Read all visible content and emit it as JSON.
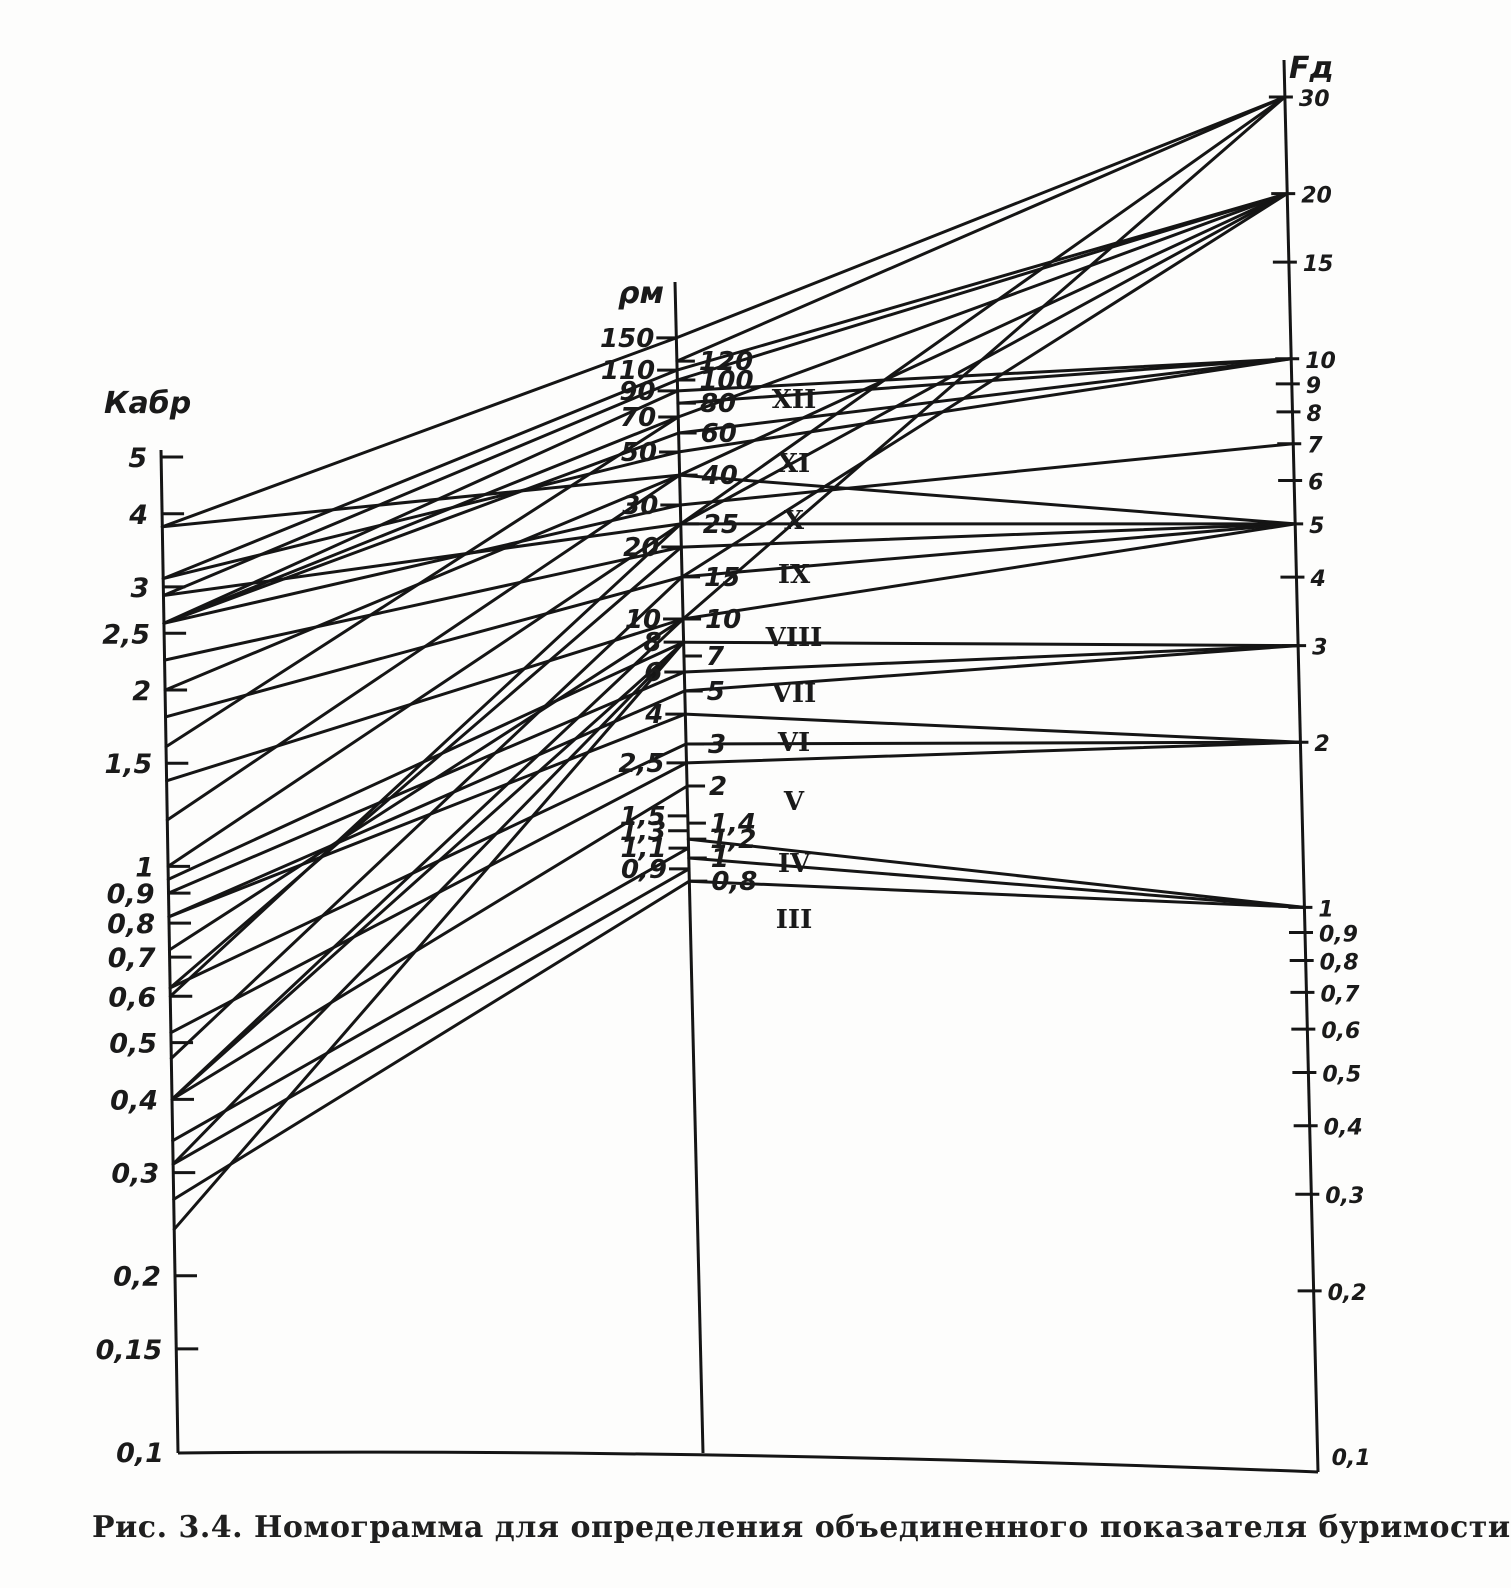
{
  "caption": "Рис. 3.4. Номограмма для определения объединенного показателя буримости",
  "chart_data": {
    "type": "nomogram",
    "axes": {
      "left": {
        "title": "Кабр",
        "scale": "log",
        "range": [
          0.1,
          5
        ],
        "ticks": [
          {
            "v": 5,
            "label": "5"
          },
          {
            "v": 4,
            "label": "4"
          },
          {
            "v": 3,
            "label": "3"
          },
          {
            "v": 2.5,
            "label": "2,5"
          },
          {
            "v": 2,
            "label": "2"
          },
          {
            "v": 1.5,
            "label": "1,5"
          },
          {
            "v": 1,
            "label": "1"
          },
          {
            "v": 0.9,
            "label": "0,9"
          },
          {
            "v": 0.8,
            "label": "0,8"
          },
          {
            "v": 0.7,
            "label": "0,7"
          },
          {
            "v": 0.6,
            "label": "0,6"
          },
          {
            "v": 0.5,
            "label": "0,5"
          },
          {
            "v": 0.4,
            "label": "0,4"
          },
          {
            "v": 0.3,
            "label": "0,3"
          },
          {
            "v": 0.2,
            "label": "0,2"
          },
          {
            "v": 0.15,
            "label": "0,15"
          },
          {
            "v": 0.1,
            "label": "0,1"
          }
        ]
      },
      "middle": {
        "title": "ρм",
        "scale": "log",
        "left_ticks": [
          {
            "v": 150,
            "label": "150"
          },
          {
            "v": 110,
            "label": "110"
          },
          {
            "v": 90,
            "label": "90"
          },
          {
            "v": 70,
            "label": "70"
          },
          {
            "v": 50,
            "label": "50"
          },
          {
            "v": 30,
            "label": "30"
          },
          {
            "v": 20,
            "label": "20"
          },
          {
            "v": 10,
            "label": "10"
          },
          {
            "v": 8,
            "label": "8"
          },
          {
            "v": 6,
            "label": "6"
          },
          {
            "v": 4,
            "label": "4"
          },
          {
            "v": 2.5,
            "label": "2,5"
          },
          {
            "v": 1.5,
            "label": "1,5"
          },
          {
            "v": 1.3,
            "label": "1,3"
          },
          {
            "v": 1.1,
            "label": "1,1"
          },
          {
            "v": 0.9,
            "label": "0,9"
          }
        ],
        "right_ticks": [
          {
            "v": 120,
            "label": "120"
          },
          {
            "v": 100,
            "label": "100"
          },
          {
            "v": 80,
            "label": "80"
          },
          {
            "v": 60,
            "label": "60"
          },
          {
            "v": 40,
            "label": "40"
          },
          {
            "v": 25,
            "label": "25"
          },
          {
            "v": 15,
            "label": "15"
          },
          {
            "v": 10,
            "label": "10"
          },
          {
            "v": 7,
            "label": "7"
          },
          {
            "v": 5,
            "label": "5"
          },
          {
            "v": 3,
            "label": "3"
          },
          {
            "v": 2,
            "label": "2"
          },
          {
            "v": 1.4,
            "label": "1,4"
          },
          {
            "v": 1.2,
            "label": "1,2"
          },
          {
            "v": 1,
            "label": "1"
          },
          {
            "v": 0.8,
            "label": "0,8"
          }
        ]
      },
      "right": {
        "title": "Fд",
        "scale": "log",
        "range": [
          0.1,
          30
        ],
        "ticks": [
          {
            "v": 30,
            "label": "30"
          },
          {
            "v": 20,
            "label": "20"
          },
          {
            "v": 15,
            "label": "15"
          },
          {
            "v": 10,
            "label": "10"
          },
          {
            "v": 9,
            "label": "9"
          },
          {
            "v": 8,
            "label": "8"
          },
          {
            "v": 7,
            "label": "7"
          },
          {
            "v": 6,
            "label": "6"
          },
          {
            "v": 5,
            "label": "5"
          },
          {
            "v": 4,
            "label": "4"
          },
          {
            "v": 3,
            "label": "3"
          },
          {
            "v": 2,
            "label": "2"
          },
          {
            "v": 1,
            "label": "1"
          },
          {
            "v": 0.9,
            "label": "0,9"
          },
          {
            "v": 0.8,
            "label": "0,8"
          },
          {
            "v": 0.7,
            "label": "0,7"
          },
          {
            "v": 0.6,
            "label": "0,6"
          },
          {
            "v": 0.5,
            "label": "0,5"
          },
          {
            "v": 0.4,
            "label": "0,4"
          },
          {
            "v": 0.3,
            "label": "0,3"
          },
          {
            "v": 0.2,
            "label": "0,2"
          },
          {
            "v": 0.1,
            "label": "0,1"
          }
        ]
      }
    },
    "categories": [
      {
        "label": "XII",
        "rho": 100,
        "F": 20
      },
      {
        "label": "XI",
        "rho": 60,
        "F": 10
      },
      {
        "label": "X",
        "rho": 40,
        "F": 5
      },
      {
        "label": "IX",
        "rho": 25,
        "F": 5
      },
      {
        "label": "VIII",
        "rho": 15,
        "F": 30
      },
      {
        "label": "VII",
        "rho": 10,
        "F": 7
      },
      {
        "label": "VI",
        "rho": 7,
        "F": 3
      },
      {
        "label": "V",
        "rho": 5,
        "F": 3
      },
      {
        "label": "IV",
        "rho": 3,
        "F": 2
      },
      {
        "label": "III",
        "rho": 2,
        "F": 2
      }
    ],
    "lines": [
      {
        "axis": "R",
        "from": 30,
        "to": 150
      },
      {
        "axis": "R",
        "from": 30,
        "to": 120
      },
      {
        "axis": "R",
        "from": 30,
        "to": 25
      },
      {
        "axis": "R",
        "from": 30,
        "to": 10
      },
      {
        "axis": "R",
        "from": 20,
        "to": 110
      },
      {
        "axis": "R",
        "from": 20,
        "to": 100
      },
      {
        "axis": "R",
        "from": 20,
        "to": 70
      },
      {
        "axis": "R",
        "from": 20,
        "to": 40
      },
      {
        "axis": "R",
        "from": 20,
        "to": 25
      },
      {
        "axis": "R",
        "from": 20,
        "to": 15
      },
      {
        "axis": "R",
        "from": 10,
        "to": 90
      },
      {
        "axis": "R",
        "from": 10,
        "to": 80
      },
      {
        "axis": "R",
        "from": 10,
        "to": 60
      },
      {
        "axis": "R",
        "from": 10,
        "to": 50
      },
      {
        "axis": "R",
        "from": 7,
        "to": 30
      },
      {
        "axis": "R",
        "from": 5,
        "to": 40
      },
      {
        "axis": "R",
        "from": 5,
        "to": 25
      },
      {
        "axis": "R",
        "from": 5,
        "to": 20
      },
      {
        "axis": "R",
        "from": 5,
        "to": 15
      },
      {
        "axis": "R",
        "from": 5,
        "to": 10
      },
      {
        "axis": "R",
        "from": 3,
        "to": 8
      },
      {
        "axis": "R",
        "from": 3,
        "to": 6
      },
      {
        "axis": "R",
        "from": 3,
        "to": 5
      },
      {
        "axis": "R",
        "from": 2,
        "to": 4
      },
      {
        "axis": "R",
        "from": 2,
        "to": 3
      },
      {
        "axis": "R",
        "from": 2,
        "to": 2.5
      },
      {
        "axis": "R",
        "from": 1,
        "to": 1.2
      },
      {
        "axis": "R",
        "from": 1,
        "to": 1
      },
      {
        "axis": "R",
        "from": 1,
        "to": 0.8
      },
      {
        "axis": "K",
        "from": 3.8,
        "to": 150
      },
      {
        "axis": "K",
        "from": 3.8,
        "to": 40
      },
      {
        "axis": "K",
        "from": 3.1,
        "to": 110
      },
      {
        "axis": "K",
        "from": 3.1,
        "to": 50
      },
      {
        "axis": "K",
        "from": 2.9,
        "to": 100
      },
      {
        "axis": "K",
        "from": 2.9,
        "to": 25
      },
      {
        "axis": "K",
        "from": 2.6,
        "to": 90
      },
      {
        "axis": "K",
        "from": 2.6,
        "to": 70
      },
      {
        "axis": "K",
        "from": 2.6,
        "to": 30
      },
      {
        "axis": "K",
        "from": 2.6,
        "to": 60
      },
      {
        "axis": "K",
        "from": 2.25,
        "to": 20
      },
      {
        "axis": "K",
        "from": 2,
        "to": 40
      },
      {
        "axis": "K",
        "from": 1.8,
        "to": 15
      },
      {
        "axis": "K",
        "from": 1.6,
        "to": 70
      },
      {
        "axis": "K",
        "from": 1.4,
        "to": 10
      },
      {
        "axis": "K",
        "from": 1.2,
        "to": 40
      },
      {
        "axis": "K",
        "from": 1,
        "to": 25
      },
      {
        "axis": "K",
        "from": 0.95,
        "to": 8
      },
      {
        "axis": "K",
        "from": 0.9,
        "to": 6
      },
      {
        "axis": "K",
        "from": 0.82,
        "to": 5
      },
      {
        "axis": "K",
        "from": 0.82,
        "to": 4
      },
      {
        "axis": "K",
        "from": 0.72,
        "to": 10
      },
      {
        "axis": "K",
        "from": 0.62,
        "to": 20
      },
      {
        "axis": "K",
        "from": 0.62,
        "to": 3
      },
      {
        "axis": "K",
        "from": 0.6,
        "to": 25
      },
      {
        "axis": "K",
        "from": 0.52,
        "to": 2.5
      },
      {
        "axis": "K",
        "from": 0.47,
        "to": 15
      },
      {
        "axis": "K",
        "from": 0.4,
        "to": 10
      },
      {
        "axis": "K",
        "from": 0.4,
        "to": 2
      },
      {
        "axis": "K",
        "from": 0.4,
        "to": 8
      },
      {
        "axis": "K",
        "from": 0.34,
        "to": 1.1
      },
      {
        "axis": "K",
        "from": 0.31,
        "to": 8
      },
      {
        "axis": "K",
        "from": 0.31,
        "to": 0.9
      },
      {
        "axis": "K",
        "from": 0.27,
        "to": 0.8
      },
      {
        "axis": "K",
        "from": 0.24,
        "to": 8
      }
    ]
  }
}
